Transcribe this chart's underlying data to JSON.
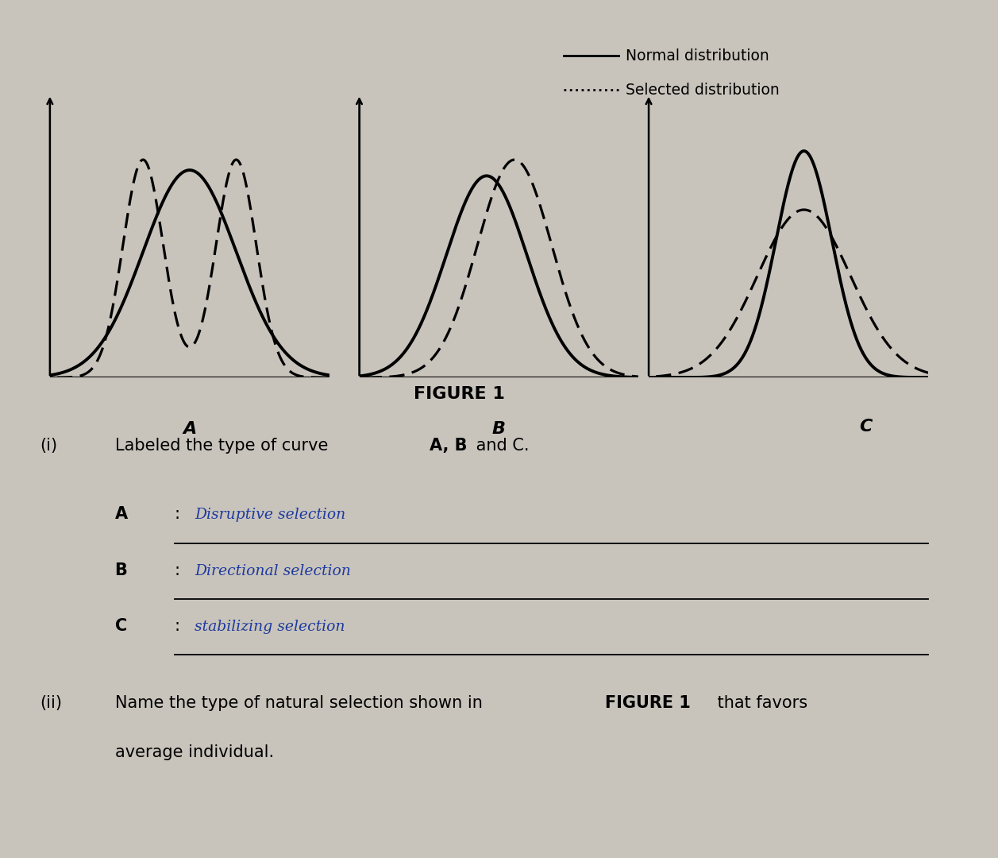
{
  "bg_color": "#c8c4bc",
  "title": "FIGURE 1",
  "legend_normal": "Normal distribution",
  "legend_selected": "Selected distribution",
  "label_A": "A",
  "label_B": "B",
  "label_C": "C",
  "question_i_prefix": "(i)",
  "question_i_normal": "Labeled the type of curve ",
  "question_i_bold": "A, B",
  "question_i_end": " and C.",
  "answer_A_label": "A",
  "answer_A_text": "Disruptive selection",
  "answer_B_label": "B",
  "answer_B_text": "Directional selection",
  "answer_C_label": "C",
  "answer_C_text": "stabilizing selection",
  "question_ii_prefix": "(ii)",
  "question_ii_line1_normal": "Name the type of natural selection shown in ",
  "question_ii_line1_bold": "FIGURE 1",
  "question_ii_line1_end": " that favors",
  "question_ii_line2": "average individual."
}
